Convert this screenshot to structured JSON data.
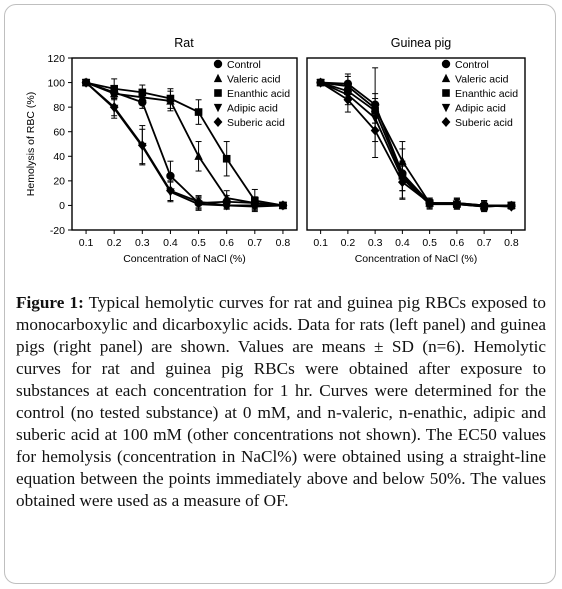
{
  "figure": {
    "caption_label": "Figure 1:",
    "caption_text": "Typical hemolytic curves for rat and guinea pig RBCs exposed to monocarboxylic and dicarboxylic acids. Data for rats (left panel) and guinea pigs (right panel) are shown. Values are means ± SD (n=6). Hemolytic curves for rat and guinea pig RBCs were obtained after exposure to substances at each concentration for 1 hr. Curves were determined for the control (no tested substance) at 0 mM, and n-valeric, n-enathic, adipic and suberic acid at 100 mM (other concentrations not shown). The EC50 values for hemolysis (concentration in NaCl%) were obtained using a straight-line equation between the points immediately above and below 50%. The values obtained were used as a measure of OF."
  },
  "chart_data": [
    {
      "type": "line",
      "title": "Rat",
      "xlabel": "Concentration of NaCl (%)",
      "ylabel": "Hemolysis of RBC (%)",
      "xlim": [
        0.05,
        0.85
      ],
      "ylim": [
        -20,
        120
      ],
      "x_ticks": [
        "0.1",
        "0.2",
        "0.3",
        "0.4",
        "0.5",
        "0.6",
        "0.7",
        "0.8"
      ],
      "y_ticks": [
        "-20",
        "0",
        "20",
        "40",
        "60",
        "80",
        "100",
        "120"
      ],
      "grid": false,
      "legend_position": "top-right",
      "x": [
        0.1,
        0.2,
        0.3,
        0.4,
        0.5,
        0.6,
        0.7,
        0.8
      ],
      "series": [
        {
          "name": "Control",
          "marker": "circle",
          "values": [
            100,
            92,
            84,
            24,
            2,
            3,
            2,
            0
          ],
          "errors": [
            0,
            4,
            5,
            12,
            5,
            5,
            4,
            0
          ]
        },
        {
          "name": "Valeric acid",
          "marker": "triangle-up",
          "values": [
            100,
            91,
            88,
            85,
            40,
            6,
            2,
            0
          ],
          "errors": [
            0,
            5,
            6,
            8,
            12,
            6,
            5,
            0
          ]
        },
        {
          "name": "Enanthic acid",
          "marker": "square",
          "values": [
            100,
            95,
            92,
            87,
            76,
            38,
            4,
            0
          ],
          "errors": [
            0,
            8,
            6,
            8,
            10,
            14,
            9,
            0
          ]
        },
        {
          "name": "Adipic acid",
          "marker": "triangle-down",
          "values": [
            100,
            79,
            48,
            11,
            1,
            0,
            -1,
            0
          ],
          "errors": [
            0,
            8,
            14,
            8,
            5,
            3,
            3,
            0
          ]
        },
        {
          "name": "Suberic acid",
          "marker": "diamond",
          "values": [
            100,
            80,
            49,
            12,
            3,
            0,
            0,
            0
          ],
          "errors": [
            0,
            7,
            16,
            8,
            5,
            3,
            3,
            0
          ]
        }
      ]
    },
    {
      "type": "line",
      "title": "Guinea pig",
      "xlabel": "Concentration of NaCl (%)",
      "ylabel": "",
      "xlim": [
        0.05,
        0.85
      ],
      "ylim": [
        -20,
        120
      ],
      "x_ticks": [
        "0.1",
        "0.2",
        "0.3",
        "0.4",
        "0.5",
        "0.6",
        "0.7",
        "0.8"
      ],
      "y_ticks": [],
      "grid": false,
      "legend_position": "top-right",
      "x": [
        0.1,
        0.2,
        0.3,
        0.4,
        0.5,
        0.6,
        0.7,
        0.8
      ],
      "series": [
        {
          "name": "Control",
          "marker": "circle",
          "values": [
            100,
            99,
            82,
            26,
            2,
            1,
            0,
            0
          ],
          "errors": [
            0,
            8,
            30,
            20,
            3,
            4,
            4,
            2
          ]
        },
        {
          "name": "Valeric acid",
          "marker": "triangle-up",
          "values": [
            100,
            97,
            79,
            36,
            2,
            2,
            0,
            0
          ],
          "errors": [
            0,
            8,
            12,
            16,
            4,
            4,
            4,
            2
          ]
        },
        {
          "name": "Enanthic acid",
          "marker": "square",
          "values": [
            100,
            93,
            77,
            24,
            2,
            1,
            -1,
            0
          ],
          "errors": [
            0,
            8,
            10,
            12,
            4,
            4,
            4,
            2
          ]
        },
        {
          "name": "Adipic acid",
          "marker": "triangle-down",
          "values": [
            100,
            90,
            71,
            22,
            1,
            1,
            -1,
            0
          ],
          "errors": [
            0,
            8,
            10,
            10,
            4,
            4,
            4,
            2
          ]
        },
        {
          "name": "Suberic acid",
          "marker": "diamond",
          "values": [
            100,
            86,
            61,
            19,
            2,
            2,
            0,
            -1
          ],
          "errors": [
            0,
            10,
            22,
            14,
            4,
            4,
            4,
            2
          ]
        }
      ]
    }
  ]
}
